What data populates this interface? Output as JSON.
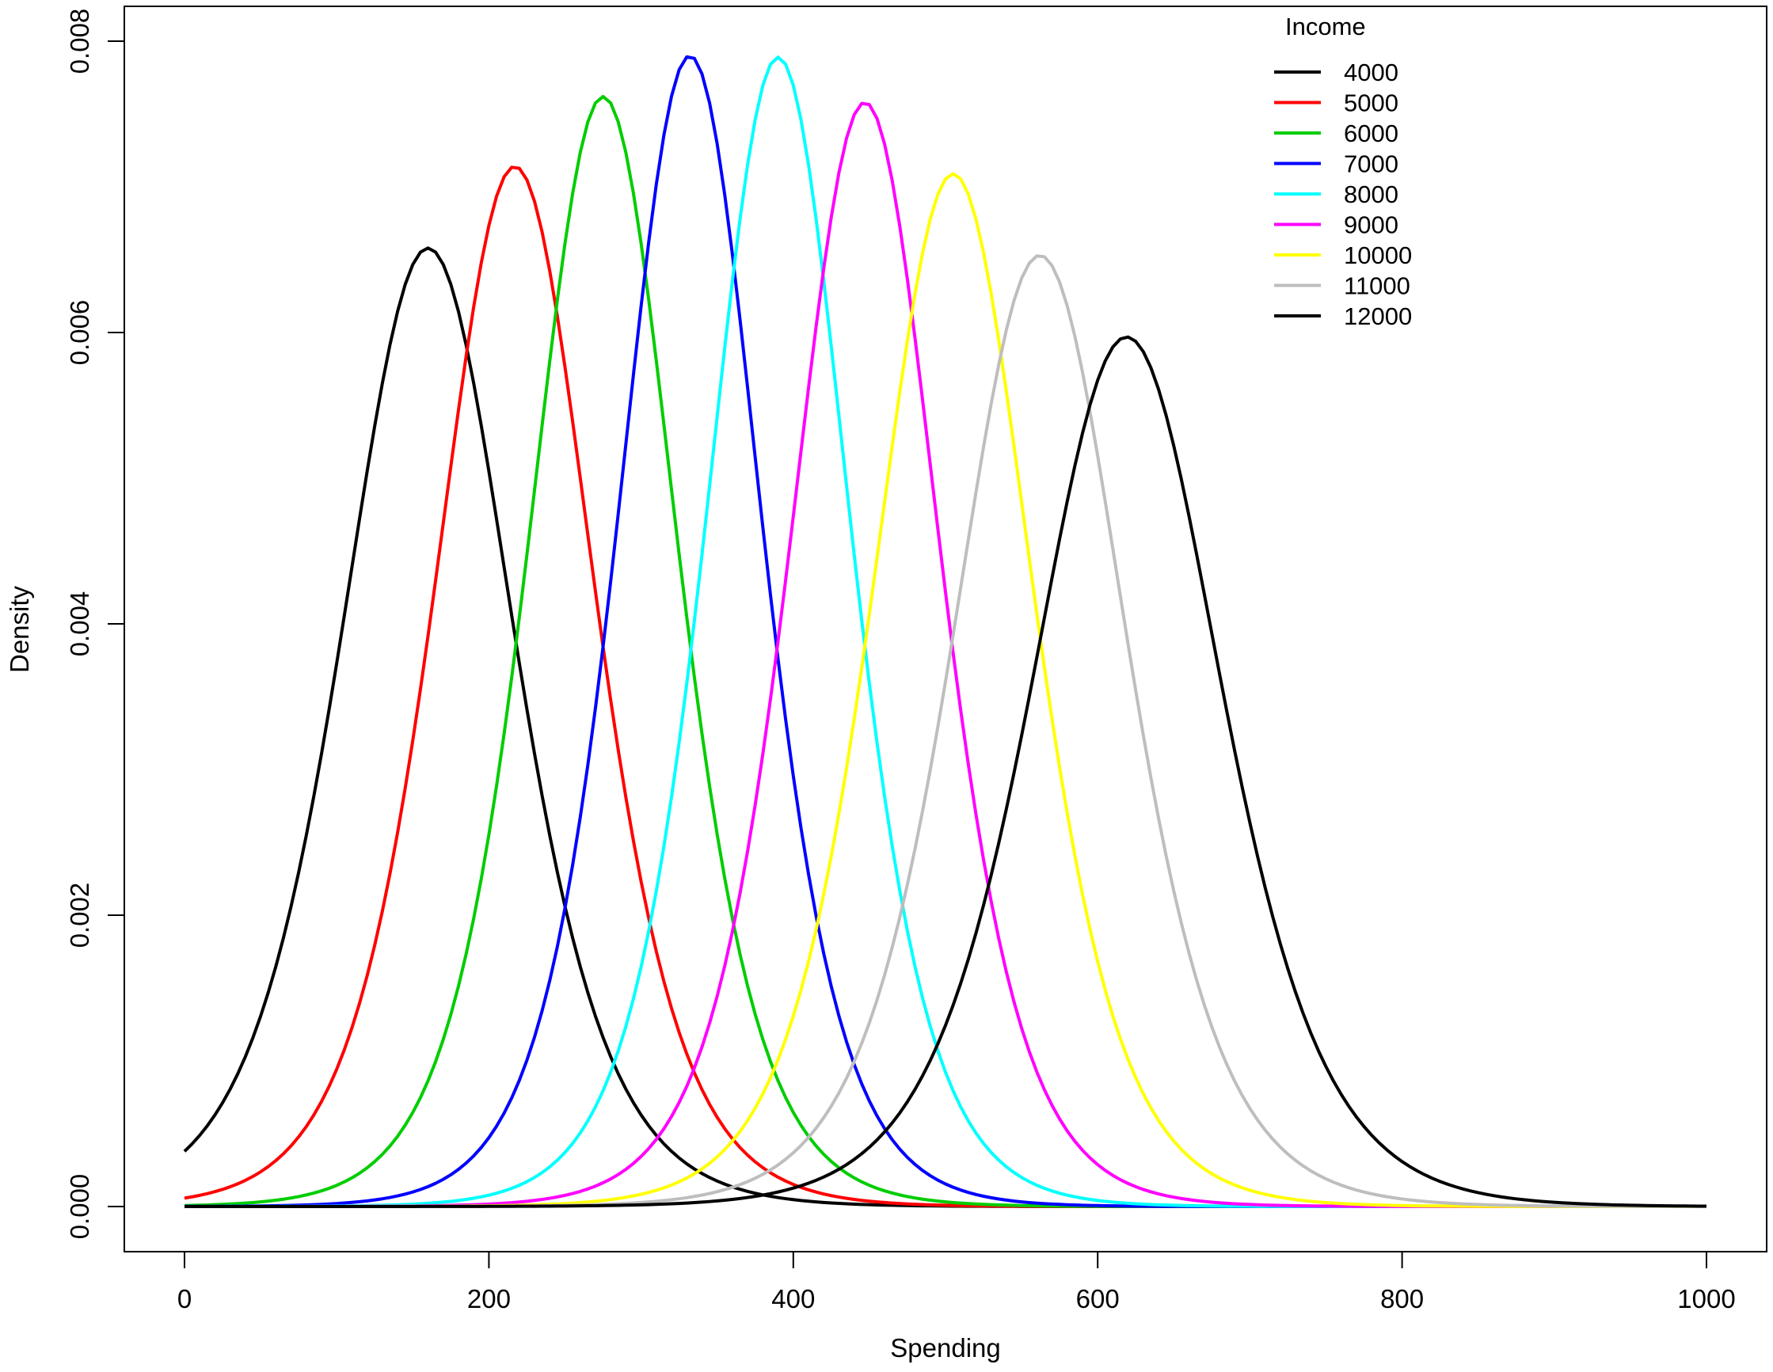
{
  "chart_data": {
    "type": "line",
    "title": "",
    "xlabel": "Spending",
    "ylabel": "Density",
    "xlim": [
      0,
      1000
    ],
    "ylim": [
      0,
      0.008
    ],
    "xticks": [
      "0",
      "200",
      "400",
      "600",
      "800",
      "1000"
    ],
    "yticks": [
      "0.000",
      "0.002",
      "0.004",
      "0.006",
      "0.008"
    ],
    "xtick_values": [
      0,
      200,
      400,
      600,
      800,
      1000
    ],
    "ytick_values": [
      0,
      0.002,
      0.004,
      0.006,
      0.008
    ],
    "grid": false,
    "legend": {
      "title": "Income",
      "placement": "top-right"
    },
    "series": [
      {
        "name": "4000",
        "color": "#000000",
        "peak_x": 160,
        "peak_y": 0.00658,
        "left_x": 0,
        "left_y": 0.00034
      },
      {
        "name": "5000",
        "color": "#ff0000",
        "peak_x": 217,
        "peak_y": 0.00714,
        "left_x": 0,
        "left_y": 8e-05
      },
      {
        "name": "6000",
        "color": "#00cd00",
        "peak_x": 275,
        "peak_y": 0.00762,
        "left_x": 0,
        "left_y": 2e-05
      },
      {
        "name": "7000",
        "color": "#0000ff",
        "peak_x": 332,
        "peak_y": 0.0079,
        "left_x": 0,
        "left_y": 3e-06
      },
      {
        "name": "8000",
        "color": "#00ffff",
        "peak_x": 390,
        "peak_y": 0.00789,
        "left_x": 0,
        "left_y": 3e-07
      },
      {
        "name": "9000",
        "color": "#ff00ff",
        "peak_x": 447,
        "peak_y": 0.00758,
        "left_x": 0,
        "left_y": 0.0
      },
      {
        "name": "10000",
        "color": "#ffff00",
        "peak_x": 505,
        "peak_y": 0.00709,
        "left_x": 0,
        "left_y": 0.0
      },
      {
        "name": "11000",
        "color": "#bebebe",
        "peak_x": 562,
        "peak_y": 0.00653,
        "left_x": 0,
        "left_y": 0.0
      },
      {
        "name": "12000",
        "color": "#000000",
        "peak_x": 619,
        "peak_y": 0.00597,
        "left_x": 0,
        "left_y": 0.0
      }
    ],
    "curve_shape": "logistic",
    "scale_factor": 0.0263
  }
}
